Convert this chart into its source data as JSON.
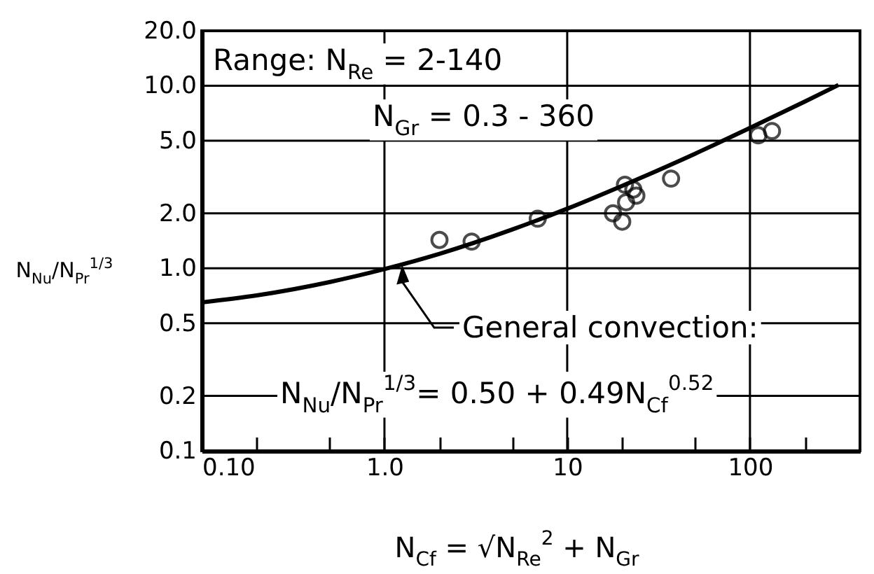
{
  "chart_data": {
    "type": "scatter",
    "xlabel": "N$_{Cf}$ = √N$_{Re}$$^{2}$ + N$_{Gr}$",
    "ylabel": "N$_{Nu}$/N$_{Pr}$$^{1/3}$",
    "log": "xy",
    "grid": true,
    "xlim": [
      0.1,
      400
    ],
    "ylim": [
      0.1,
      20
    ],
    "xticks": [
      {
        "value": 0.1,
        "label": "0.10"
      },
      {
        "value": 0.2,
        "label": null
      },
      {
        "value": 0.5,
        "label": null
      },
      {
        "value": 1,
        "label": "1.0"
      },
      {
        "value": 2,
        "label": null
      },
      {
        "value": 5,
        "label": null
      },
      {
        "value": 10,
        "label": "10"
      },
      {
        "value": 20,
        "label": null
      },
      {
        "value": 50,
        "label": null
      },
      {
        "value": 100,
        "label": "100"
      },
      {
        "value": 200,
        "label": null
      }
    ],
    "yticks": [
      0.1,
      0.2,
      0.5,
      {
        "value": 1,
        "label": "1.0"
      },
      {
        "value": 2,
        "label": "2.0"
      },
      {
        "value": 5,
        "label": "5.0"
      },
      {
        "value": 10,
        "label": "10.0"
      },
      {
        "value": 20,
        "label": "20.0"
      }
    ],
    "annotations": [
      "Range: N$_{Re}$ = 2-140",
      "N$_{Gr}$ = 0.3 - 360",
      {
        "text": "General convection:",
        "x": 1.25,
        "y": 1.1
      },
      "N$_{Nu}$/N$_{Pr}$$^{1/3}$= 0.50 + 0.49N$_{Cf}$$^{0.52}$"
    ],
    "series": [
      {
        "type": "line",
        "color": "#000000",
        "line_style": "solid",
        "x": [
          0.1,
          0.2,
          0.5,
          1,
          2,
          5,
          10,
          20,
          50,
          100,
          200,
          305
        ],
        "values": [
          0.65,
          0.71,
          0.84,
          0.99,
          1.2,
          1.63,
          2.12,
          2.83,
          4.24,
          5.87,
          8.2,
          10.1
        ]
      },
      {
        "color": "#000000",
        "marker": "circle",
        "x": [
          2,
          3,
          6.9,
          17.8,
          20,
          20.7,
          23,
          23.9,
          21,
          37,
          111,
          132
        ],
        "values": [
          1.43,
          1.4,
          1.87,
          2,
          1.8,
          2.87,
          2.7,
          2.5,
          2.3,
          3.1,
          5.35,
          5.65
        ]
      }
    ]
  }
}
